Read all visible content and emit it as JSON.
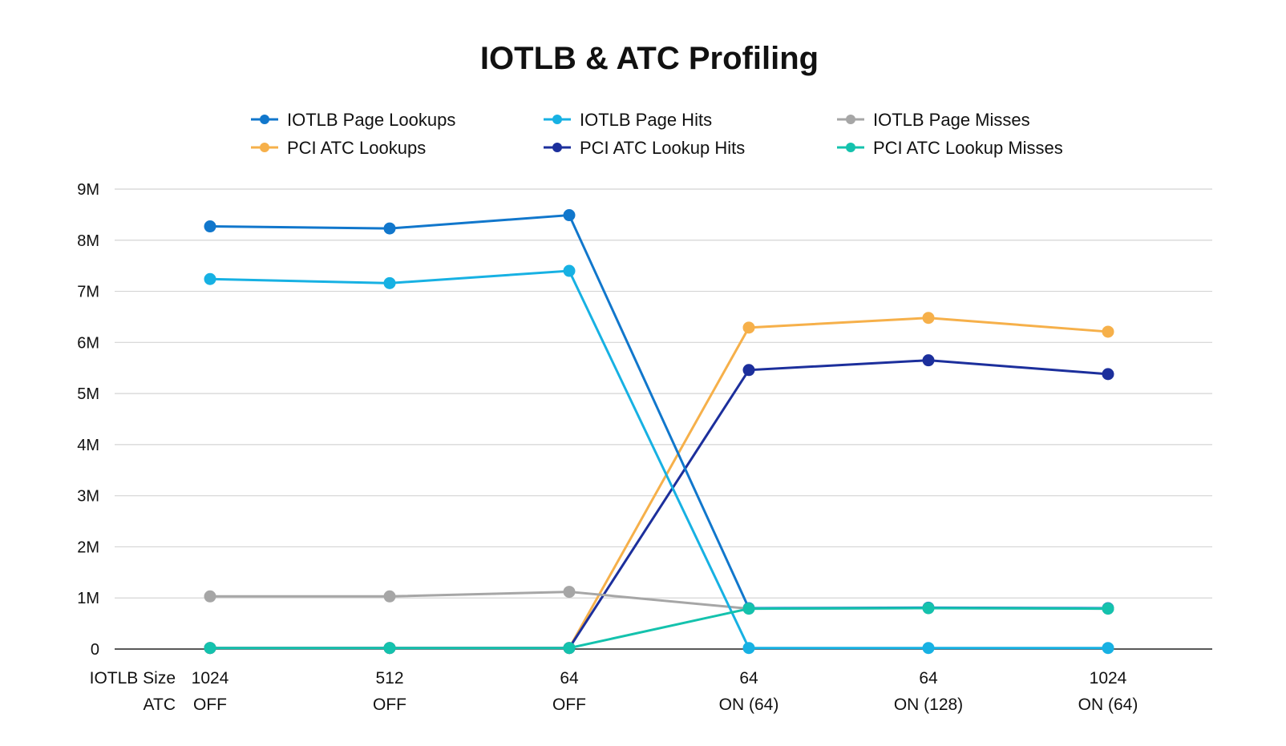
{
  "chart_data": {
    "type": "line",
    "title": "IOTLB & ATC Profiling",
    "x_row_labels": [
      "IOTLB Size",
      "ATC"
    ],
    "categories": [
      {
        "iotlb_size": "1024",
        "atc": "OFF"
      },
      {
        "iotlb_size": "512",
        "atc": "OFF"
      },
      {
        "iotlb_size": "64",
        "atc": "OFF"
      },
      {
        "iotlb_size": "64",
        "atc": "ON (64)"
      },
      {
        "iotlb_size": "64",
        "atc": "ON (128)"
      },
      {
        "iotlb_size": "1024",
        "atc": "ON (64)"
      }
    ],
    "ylim": [
      0,
      9000000
    ],
    "yticks": [
      {
        "v": 0,
        "label": "0"
      },
      {
        "v": 1000000,
        "label": "1M"
      },
      {
        "v": 2000000,
        "label": "2M"
      },
      {
        "v": 3000000,
        "label": "3M"
      },
      {
        "v": 4000000,
        "label": "4M"
      },
      {
        "v": 5000000,
        "label": "5M"
      },
      {
        "v": 6000000,
        "label": "6M"
      },
      {
        "v": 7000000,
        "label": "7M"
      },
      {
        "v": 8000000,
        "label": "8M"
      },
      {
        "v": 9000000,
        "label": "9M"
      }
    ],
    "grid": true,
    "legend_position": "top",
    "series": [
      {
        "name": "IOTLB Page Lookups",
        "color": "#1177cc",
        "values": [
          8270000,
          8230000,
          8490000,
          800000,
          810000,
          800000
        ]
      },
      {
        "name": "IOTLB Page Hits",
        "color": "#17b1e3",
        "values": [
          7240000,
          7160000,
          7400000,
          20000,
          20000,
          20000
        ]
      },
      {
        "name": "IOTLB Page Misses",
        "color": "#a6a6a6",
        "values": [
          1030000,
          1030000,
          1120000,
          790000,
          800000,
          790000
        ]
      },
      {
        "name": "PCI ATC Lookups",
        "color": "#f6b04a",
        "values": [
          20000,
          20000,
          20000,
          6290000,
          6480000,
          6210000
        ]
      },
      {
        "name": "PCI ATC Lookup Hits",
        "color": "#1c2f9c",
        "values": [
          20000,
          20000,
          20000,
          5460000,
          5650000,
          5380000
        ]
      },
      {
        "name": "PCI ATC Lookup Misses",
        "color": "#14c2ad",
        "values": [
          20000,
          20000,
          20000,
          790000,
          800000,
          790000
        ]
      }
    ]
  }
}
